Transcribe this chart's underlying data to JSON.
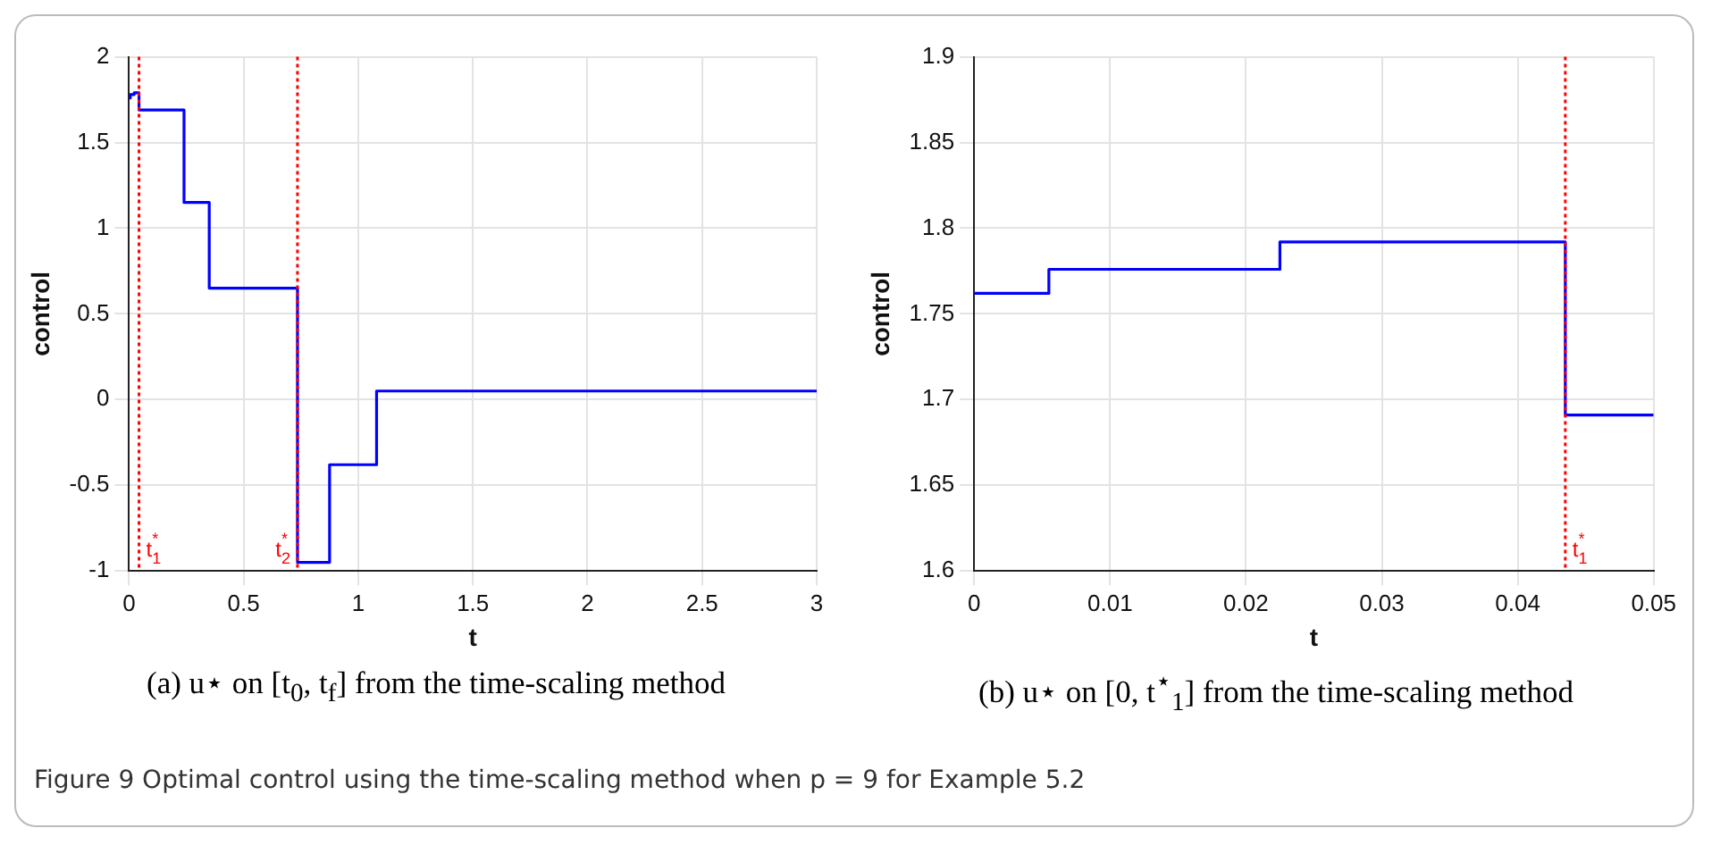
{
  "chart_data": [
    {
      "type": "step",
      "xlabel": "t",
      "ylabel": "control",
      "x": [
        0,
        0.0055,
        0.0225,
        0.0435,
        0.24,
        0.35,
        0.735,
        0.875,
        1.08,
        3
      ],
      "series": [
        {
          "color": "#0000ff",
          "values": [
            1.76,
            1.78,
            1.79,
            1.69,
            1.15,
            0.65,
            -0.95,
            -0.38,
            0.05,
            0.05
          ]
        }
      ],
      "xlim": [
        0,
        3
      ],
      "xticks": [
        0,
        0.5,
        1,
        1.5,
        2,
        2.5,
        3
      ],
      "ylim": [
        -1,
        2
      ],
      "yticks": [
        -1,
        -0.5,
        0,
        0.5,
        1,
        1.5,
        2
      ],
      "grid": true,
      "ref_lines": [
        {
          "axis": "x",
          "value": 0.0435,
          "label": "t$^{*}$$_{1}$",
          "color": "#ff0000",
          "line_style": "dotted"
        },
        {
          "axis": "x",
          "value": 0.735,
          "label": "t$^{*}$$_{2}$",
          "color": "#ff0000",
          "line_style": "dotted"
        }
      ],
      "annotations": [
        "(a) u⋆ on [t$_{0}$, t$_{f}$] from the time-scaling method"
      ]
    },
    {
      "type": "step",
      "xlabel": "t",
      "ylabel": "control",
      "x": [
        0,
        0.0055,
        0.0225,
        0.0435,
        0.05
      ],
      "series": [
        {
          "color": "#0000ff",
          "values": [
            1.762,
            1.776,
            1.792,
            1.691,
            1.691
          ]
        }
      ],
      "xlim": [
        0,
        0.05
      ],
      "xticks": [
        0,
        0.01,
        0.02,
        0.03,
        0.04,
        0.05
      ],
      "ylim": [
        1.6,
        1.9
      ],
      "yticks": [
        1.6,
        1.65,
        1.7,
        1.75,
        1.8,
        1.85,
        1.9
      ],
      "grid": true,
      "ref_lines": [
        {
          "axis": "x",
          "value": 0.0435,
          "label": "t$^{*}$$_{1}$",
          "color": "#ff0000",
          "line_style": "dotted"
        }
      ],
      "annotations": [
        "(b) u⋆ on [0, t$^{⋆}$$_{1}$] from the time-scaling method",
        "Figure 9  Optimal control using the time-scaling method when p = 9 for Example 5.2"
      ]
    }
  ]
}
